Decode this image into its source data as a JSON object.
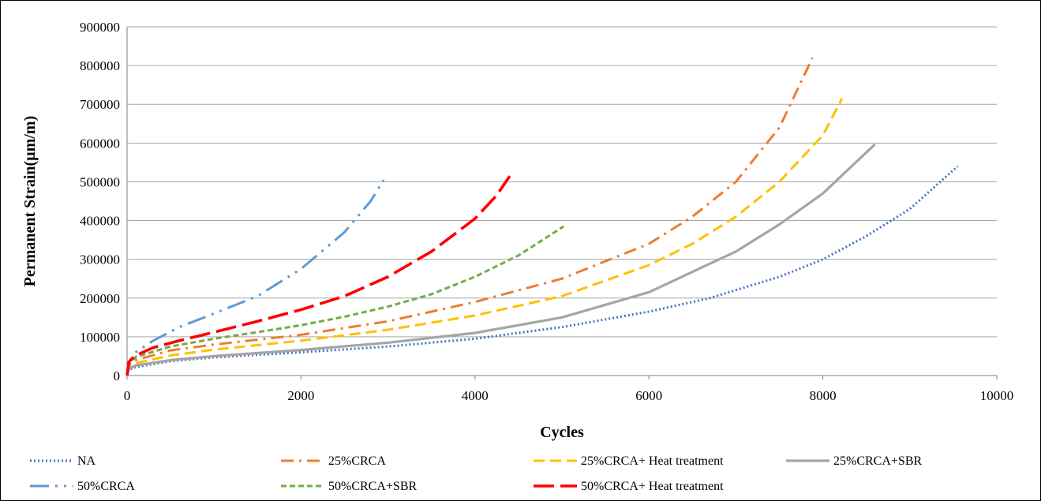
{
  "chart_data": {
    "type": "line",
    "title": "",
    "xlabel": "Cycles",
    "ylabel": "Permanent Strain(µm/m)",
    "xlim": [
      0,
      10000
    ],
    "ylim": [
      0,
      900000
    ],
    "x_ticks": [
      0,
      2000,
      4000,
      6000,
      8000,
      10000
    ],
    "y_ticks": [
      0,
      100000,
      200000,
      300000,
      400000,
      500000,
      600000,
      700000,
      800000,
      900000
    ],
    "grid": "horizontal",
    "legend_position": "bottom",
    "series": [
      {
        "name": "NA",
        "color": "#4472C4",
        "dash": "dotted",
        "x": [
          0,
          20,
          100,
          500,
          1000,
          2000,
          3000,
          4000,
          5000,
          6000,
          6700,
          7500,
          8000,
          8500,
          9000,
          9550
        ],
        "y": [
          0,
          15000,
          22000,
          37000,
          47000,
          60000,
          75000,
          95000,
          125000,
          165000,
          200000,
          255000,
          300000,
          360000,
          430000,
          540000
        ]
      },
      {
        "name": "25%CRCA",
        "color": "#ED7D31",
        "dash": "dashdot",
        "x": [
          0,
          20,
          100,
          500,
          1000,
          2000,
          3000,
          4000,
          5000,
          6000,
          6500,
          7000,
          7500,
          7880
        ],
        "y": [
          0,
          25000,
          40000,
          65000,
          80000,
          105000,
          140000,
          190000,
          250000,
          340000,
          410000,
          500000,
          640000,
          820000
        ]
      },
      {
        "name": "25%CRCA+ Heat treatment",
        "color": "#FFC000",
        "dash": "dashed",
        "x": [
          0,
          20,
          100,
          500,
          1000,
          2000,
          3000,
          4000,
          5000,
          6000,
          6500,
          7000,
          7500,
          8000,
          8220
        ],
        "y": [
          0,
          20000,
          32000,
          52000,
          67000,
          90000,
          118000,
          155000,
          205000,
          285000,
          340000,
          410000,
          500000,
          620000,
          715000
        ]
      },
      {
        "name": "25%CRCA+SBR",
        "color": "#A5A5A5",
        "dash": "solid",
        "x": [
          0,
          20,
          100,
          500,
          1000,
          2000,
          3000,
          4000,
          5000,
          6000,
          7000,
          7500,
          8000,
          8600
        ],
        "y": [
          0,
          18000,
          26000,
          40000,
          50000,
          66000,
          85000,
          110000,
          150000,
          215000,
          320000,
          390000,
          470000,
          597000
        ]
      },
      {
        "name": "50%CRCA",
        "color": "#5B9BD5",
        "dash": "longdashdotdot",
        "x": [
          0,
          20,
          100,
          300,
          600,
          1000,
          1500,
          2000,
          2500,
          2800,
          2950
        ],
        "y": [
          0,
          35000,
          60000,
          90000,
          125000,
          160000,
          205000,
          275000,
          370000,
          450000,
          505000
        ]
      },
      {
        "name": "50%CRCA+SBR",
        "color": "#70AD47",
        "dash": "shortdash",
        "x": [
          0,
          20,
          100,
          500,
          1000,
          1500,
          2000,
          2500,
          3000,
          3500,
          4000,
          4500,
          5020
        ],
        "y": [
          0,
          30000,
          48000,
          75000,
          95000,
          112000,
          130000,
          152000,
          178000,
          210000,
          255000,
          310000,
          385000
        ]
      },
      {
        "name": "50%CRCA+ Heat treatment",
        "color": "#FF0000",
        "dash": "longdash",
        "x": [
          0,
          20,
          100,
          300,
          600,
          1000,
          1500,
          2000,
          2500,
          3000,
          3500,
          4000,
          4250,
          4400
        ],
        "y": [
          0,
          35000,
          52000,
          72000,
          90000,
          112000,
          140000,
          170000,
          205000,
          255000,
          320000,
          405000,
          465000,
          515000
        ]
      }
    ]
  }
}
